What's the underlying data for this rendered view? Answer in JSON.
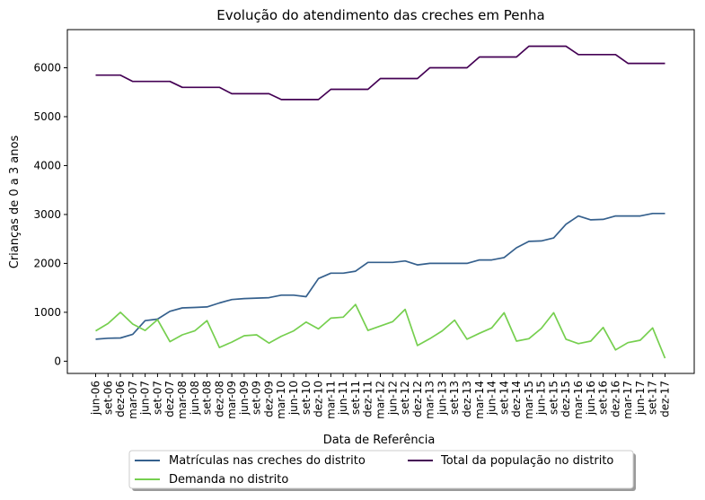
{
  "chart_data": {
    "type": "line",
    "title": "Evolução do atendimento das creches em Penha",
    "xlabel": "Data de Referência",
    "ylabel": "Crianças de 0 a 3 anos",
    "ylim": [
      -250,
      6780
    ],
    "yticks": [
      0,
      1000,
      2000,
      3000,
      4000,
      5000,
      6000
    ],
    "grid": false,
    "legend_position": "bottom-center",
    "categories": [
      "jun-06",
      "set-06",
      "dez-06",
      "mar-07",
      "jun-07",
      "set-07",
      "dez-07",
      "mar-08",
      "jun-08",
      "set-08",
      "dez-08",
      "mar-09",
      "jun-09",
      "set-09",
      "dez-09",
      "mar-10",
      "jun-10",
      "set-10",
      "dez-10",
      "mar-11",
      "jun-11",
      "set-11",
      "dez-11",
      "mar-12",
      "jun-12",
      "set-12",
      "dez-12",
      "mar-13",
      "jun-13",
      "set-13",
      "dez-13",
      "mar-14",
      "jun-14",
      "set-14",
      "dez-14",
      "mar-15",
      "jun-15",
      "set-15",
      "dez-15",
      "mar-16",
      "jun-16",
      "set-16",
      "dez-16",
      "mar-17",
      "jun-17",
      "set-17",
      "dez-17"
    ],
    "series": [
      {
        "name": "Matrículas nas creches do distrito",
        "color": "#35608d",
        "values": [
          450,
          470,
          475,
          550,
          830,
          860,
          1020,
          1090,
          1100,
          1110,
          1190,
          1260,
          1280,
          1290,
          1300,
          1350,
          1350,
          1320,
          1690,
          1800,
          1800,
          1840,
          2020,
          2020,
          2020,
          2050,
          1970,
          2000,
          2000,
          2000,
          2000,
          2070,
          2070,
          2120,
          2320,
          2450,
          2460,
          2520,
          2800,
          2970,
          2890,
          2900,
          2970,
          2970,
          2970,
          3020,
          3020
        ]
      },
      {
        "name": "Demanda no distrito",
        "color": "#76cf4f",
        "values": [
          620,
          770,
          1000,
          760,
          630,
          850,
          400,
          540,
          620,
          830,
          280,
          390,
          520,
          540,
          370,
          510,
          620,
          800,
          660,
          880,
          900,
          1160,
          630,
          720,
          810,
          1060,
          320,
          460,
          620,
          840,
          450,
          570,
          680,
          990,
          410,
          460,
          670,
          990,
          450,
          360,
          410,
          690,
          230,
          380,
          430,
          680,
          60
        ]
      },
      {
        "name": "Total da população no distrito",
        "color": "#440154",
        "values": [
          5850,
          5850,
          5850,
          5720,
          5720,
          5720,
          5720,
          5600,
          5600,
          5600,
          5600,
          5470,
          5470,
          5470,
          5470,
          5350,
          5350,
          5350,
          5350,
          5560,
          5560,
          5560,
          5560,
          5780,
          5780,
          5780,
          5780,
          6000,
          6000,
          6000,
          6000,
          6220,
          6220,
          6220,
          6220,
          6440,
          6440,
          6440,
          6440,
          6270,
          6270,
          6270,
          6270,
          6090,
          6090,
          6090,
          6090
        ]
      }
    ]
  }
}
